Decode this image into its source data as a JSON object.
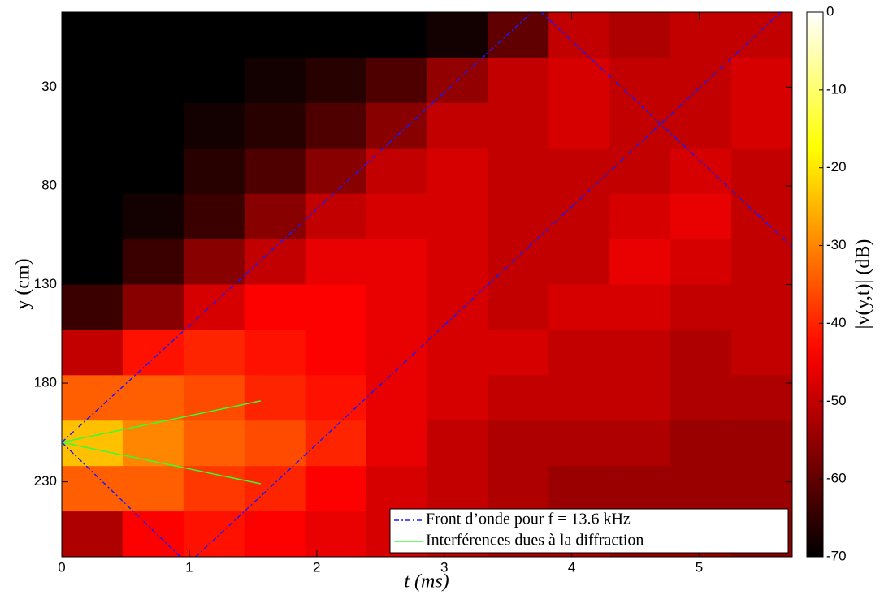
{
  "chart_data": {
    "type": "heatmap",
    "x_label": "t (ms)",
    "y_label": "y (cm)",
    "colorbar_label": "|v(y,t)| (dB)",
    "colormap": "hot",
    "xlim": [
      0,
      5.73
    ],
    "ylim": [
      -8,
      268
    ],
    "y_reversed": true,
    "xticks": [
      0,
      1,
      2,
      3,
      4,
      5
    ],
    "yticks": [
      30,
      80,
      130,
      180,
      230
    ],
    "clim": [
      -70,
      0
    ],
    "cticks": [
      0,
      -10,
      -20,
      -30,
      -40,
      -50,
      -60,
      -70
    ],
    "z": [
      [
        -70,
        -70,
        -70,
        -70,
        -70,
        -70,
        -68,
        -60,
        -50,
        -52,
        -50,
        -50
      ],
      [
        -70,
        -70,
        -70,
        -68,
        -66,
        -62,
        -55,
        -50,
        -48,
        -50,
        -50,
        -48
      ],
      [
        -70,
        -70,
        -68,
        -66,
        -62,
        -56,
        -50,
        -50,
        -48,
        -50,
        -50,
        -48
      ],
      [
        -70,
        -70,
        -66,
        -62,
        -56,
        -50,
        -48,
        -50,
        -50,
        -50,
        -48,
        -50
      ],
      [
        -70,
        -68,
        -64,
        -56,
        -50,
        -48,
        -48,
        -50,
        -50,
        -48,
        -46,
        -50
      ],
      [
        -70,
        -64,
        -56,
        -50,
        -46,
        -46,
        -48,
        -50,
        -50,
        -46,
        -48,
        -50
      ],
      [
        -64,
        -56,
        -48,
        -44,
        -44,
        -46,
        -48,
        -50,
        -48,
        -48,
        -50,
        -50
      ],
      [
        -50,
        -42,
        -40,
        -42,
        -44,
        -46,
        -48,
        -48,
        -50,
        -50,
        -52,
        -50
      ],
      [
        -34,
        -34,
        -36,
        -40,
        -42,
        -46,
        -48,
        -50,
        -50,
        -50,
        -52,
        -52
      ],
      [
        -24,
        -30,
        -34,
        -36,
        -40,
        -46,
        -50,
        -52,
        -52,
        -52,
        -54,
        -54
      ],
      [
        -34,
        -34,
        -38,
        -40,
        -44,
        -48,
        -50,
        -52,
        -54,
        -54,
        -54,
        -54
      ],
      [
        -52,
        -44,
        -42,
        -44,
        -46,
        -48,
        -50,
        -52,
        -52,
        -54,
        -54,
        -56
      ]
    ],
    "legend": "lower right",
    "series": [
      {
        "name": "Front d’onde pour f = 13.6 kHz",
        "color": "#1a1aff",
        "dash": true,
        "x": [
          0,
          0.93,
          null,
          1.05,
          5.64,
          null,
          0,
          3.69,
          null,
          3.76,
          5.73
        ],
        "y": [
          210,
          268,
          null,
          268,
          -8,
          null,
          210,
          -8,
          null,
          -8,
          111
        ]
      },
      {
        "name": "Interférences dues à la diffraction",
        "color": "#33ff33",
        "dash": false,
        "x": [
          0,
          1.56,
          null,
          0,
          1.56
        ],
        "y": [
          210,
          189,
          null,
          210,
          231
        ]
      }
    ]
  }
}
